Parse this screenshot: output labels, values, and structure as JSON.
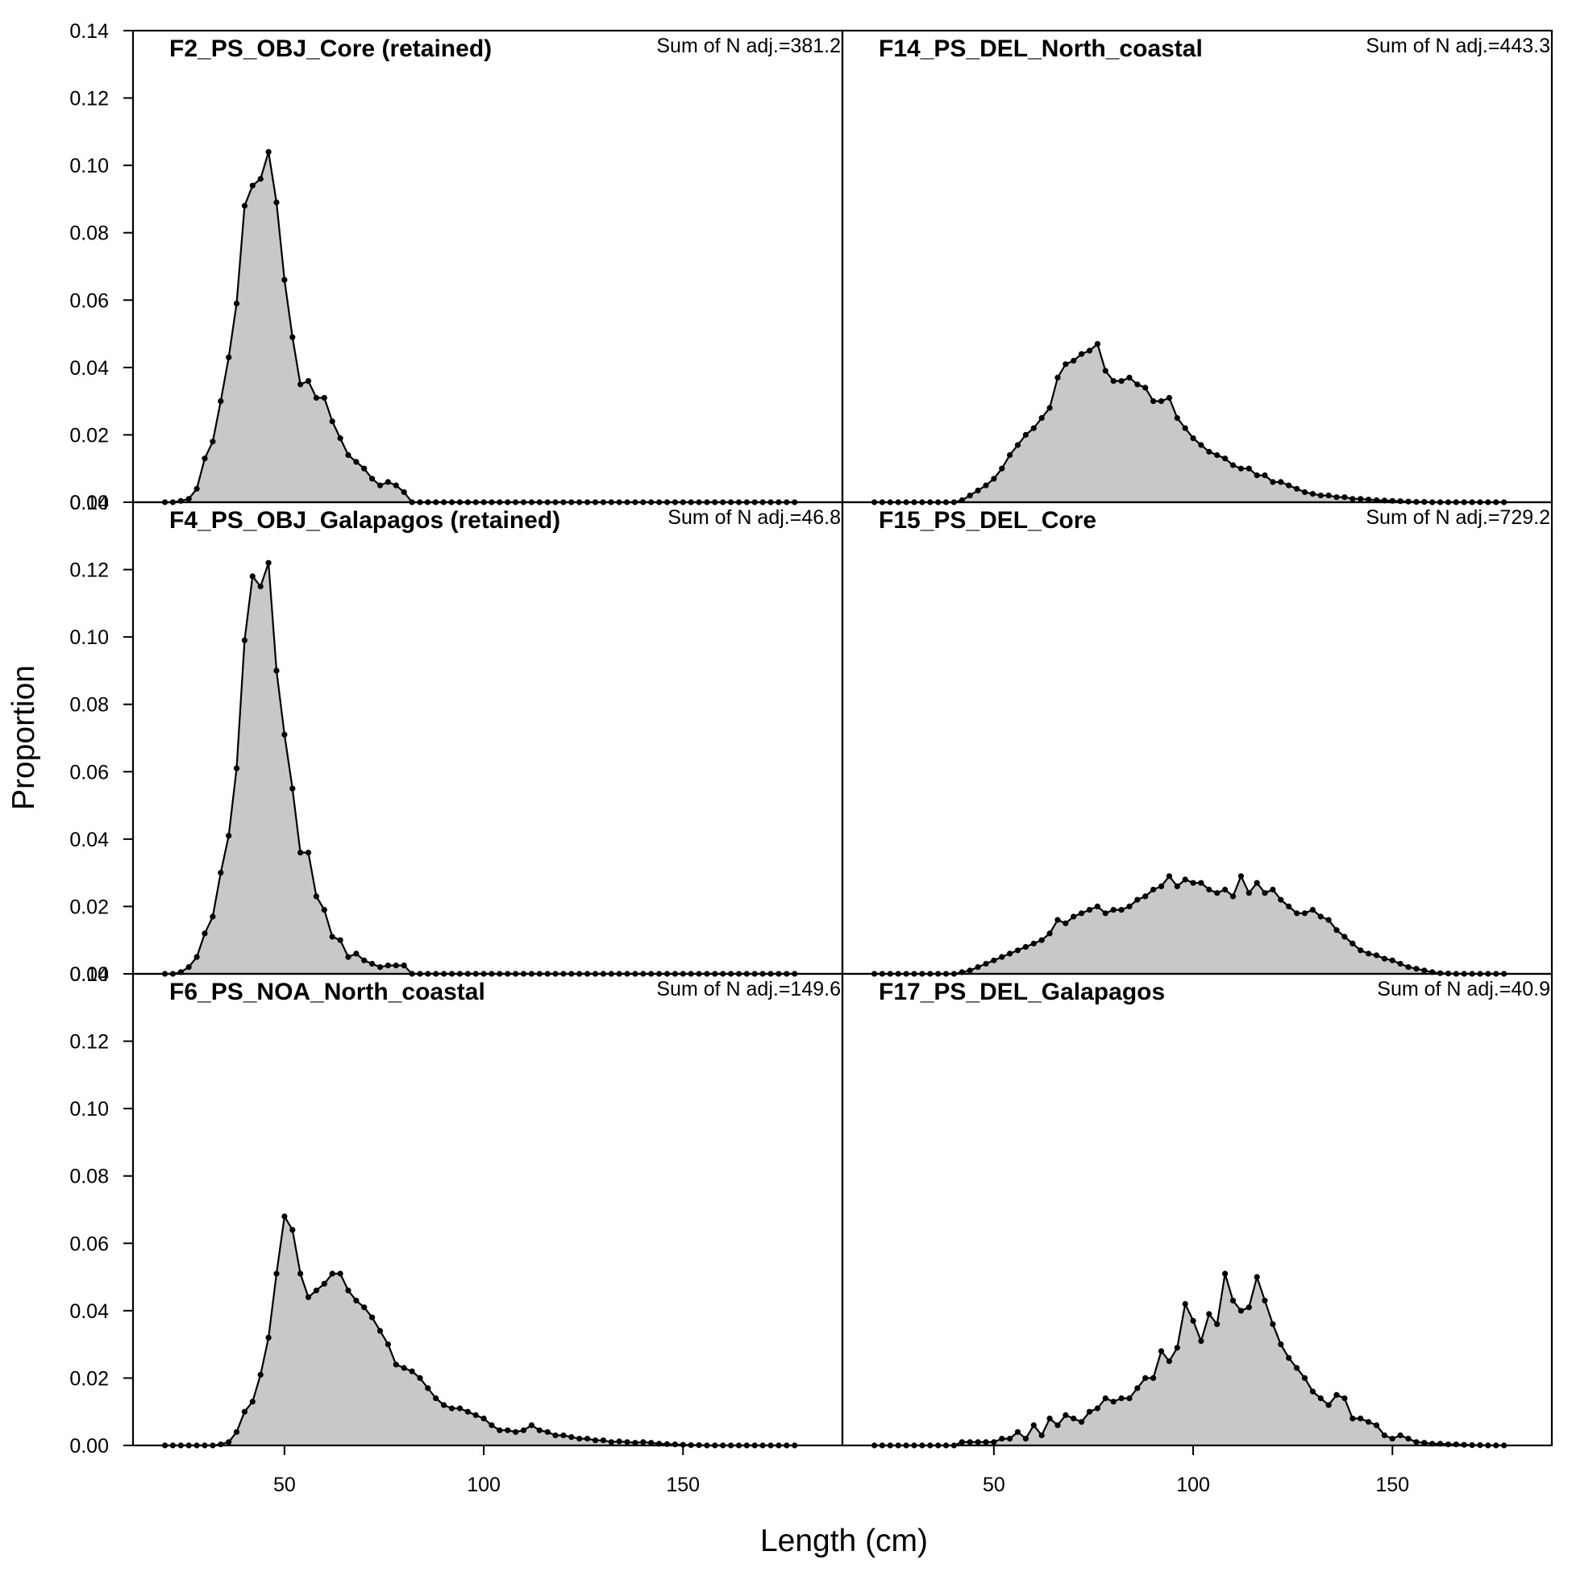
{
  "chart_data": {
    "type": "area",
    "layout": "3x2 panels, shared axes",
    "xlabel": "Length (cm)",
    "ylabel": "Proportion",
    "xlim": [
      12,
      190
    ],
    "ylim": [
      0,
      0.14
    ],
    "x_ticks": [
      50,
      100,
      150
    ],
    "x_tick_labels": [
      "50",
      "100",
      "150"
    ],
    "y_ticks": [
      0,
      0.02,
      0.04,
      0.06,
      0.08,
      0.1,
      0.12,
      0.14
    ],
    "y_tick_labels": [
      "0.00",
      "0.02",
      "0.04",
      "0.06",
      "0.08",
      "0.10",
      "0.12",
      "0.14"
    ],
    "grid": false,
    "legend": "none",
    "x": [
      20,
      22,
      24,
      26,
      28,
      30,
      32,
      34,
      36,
      38,
      40,
      42,
      44,
      46,
      48,
      50,
      52,
      54,
      56,
      58,
      60,
      62,
      64,
      66,
      68,
      70,
      72,
      74,
      76,
      78,
      80,
      82,
      84,
      86,
      88,
      90,
      92,
      94,
      96,
      98,
      100,
      102,
      104,
      106,
      108,
      110,
      112,
      114,
      116,
      118,
      120,
      122,
      124,
      126,
      128,
      130,
      132,
      134,
      136,
      138,
      140,
      142,
      144,
      146,
      148,
      150,
      152,
      154,
      156,
      158,
      160,
      162,
      164,
      166,
      168,
      170,
      172,
      174,
      176,
      178
    ],
    "panels": [
      {
        "title": "F2_PS_OBJ_Core (retained)",
        "n_label": "Sum of N adj.=381.2",
        "values": [
          0,
          0,
          0.0004,
          0.001,
          0.004,
          0.013,
          0.018,
          0.03,
          0.043,
          0.059,
          0.088,
          0.094,
          0.096,
          0.104,
          0.089,
          0.066,
          0.049,
          0.035,
          0.036,
          0.031,
          0.031,
          0.024,
          0.019,
          0.014,
          0.012,
          0.01,
          0.007,
          0.005,
          0.006,
          0.005,
          0.003,
          0,
          0,
          0,
          0,
          0,
          0,
          0,
          0,
          0,
          0,
          0,
          0,
          0,
          0,
          0,
          0,
          0,
          0,
          0,
          0,
          0,
          0,
          0,
          0,
          0,
          0,
          0,
          0,
          0,
          0,
          0,
          0,
          0,
          0,
          0,
          0,
          0,
          0,
          0,
          0,
          0,
          0,
          0,
          0,
          0,
          0,
          0,
          0,
          0
        ]
      },
      {
        "title": "F14_PS_DEL_North_coastal",
        "n_label": "Sum of N adj.=443.3",
        "values": [
          0,
          0,
          0,
          0,
          0,
          0,
          0,
          0,
          0,
          0,
          0,
          0.0006,
          0.002,
          0.0035,
          0.005,
          0.007,
          0.01,
          0.014,
          0.017,
          0.02,
          0.022,
          0.025,
          0.028,
          0.037,
          0.041,
          0.042,
          0.044,
          0.045,
          0.047,
          0.039,
          0.036,
          0.036,
          0.037,
          0.035,
          0.034,
          0.03,
          0.03,
          0.031,
          0.025,
          0.022,
          0.019,
          0.017,
          0.015,
          0.014,
          0.013,
          0.011,
          0.01,
          0.01,
          0.008,
          0.008,
          0.006,
          0.006,
          0.005,
          0.004,
          0.003,
          0.0025,
          0.002,
          0.002,
          0.0015,
          0.0015,
          0.001,
          0.001,
          0.0008,
          0.0006,
          0.0005,
          0.0004,
          0.0003,
          0.0002,
          0.0001,
          0.0001,
          0,
          0,
          0,
          0,
          0,
          0,
          0,
          0,
          0,
          0
        ]
      },
      {
        "title": "F4_PS_OBJ_Galapagos (retained)",
        "n_label": "Sum of N adj.=46.8",
        "values": [
          0,
          0,
          0.0005,
          0.002,
          0.005,
          0.012,
          0.017,
          0.03,
          0.041,
          0.061,
          0.099,
          0.118,
          0.115,
          0.122,
          0.09,
          0.071,
          0.055,
          0.036,
          0.036,
          0.023,
          0.019,
          0.011,
          0.01,
          0.005,
          0.006,
          0.004,
          0.003,
          0.002,
          0.0025,
          0.0025,
          0.0025,
          0,
          0,
          0,
          0,
          0,
          0,
          0,
          0,
          0,
          0,
          0,
          0,
          0,
          0,
          0,
          0,
          0,
          0,
          0,
          0,
          0,
          0,
          0,
          0,
          0,
          0,
          0,
          0,
          0,
          0,
          0,
          0,
          0,
          0,
          0,
          0,
          0,
          0,
          0,
          0,
          0,
          0,
          0,
          0,
          0,
          0,
          0,
          0,
          0
        ]
      },
      {
        "title": "F15_PS_DEL_Core",
        "n_label": "Sum of N adj.=729.2",
        "values": [
          0,
          0,
          0,
          0,
          0,
          0,
          0,
          0,
          0,
          0,
          0,
          0.0005,
          0.001,
          0.002,
          0.003,
          0.004,
          0.005,
          0.006,
          0.007,
          0.008,
          0.009,
          0.01,
          0.012,
          0.016,
          0.015,
          0.017,
          0.018,
          0.019,
          0.02,
          0.018,
          0.019,
          0.019,
          0.02,
          0.022,
          0.023,
          0.025,
          0.026,
          0.029,
          0.026,
          0.028,
          0.027,
          0.027,
          0.025,
          0.024,
          0.025,
          0.023,
          0.029,
          0.024,
          0.027,
          0.024,
          0.025,
          0.022,
          0.02,
          0.018,
          0.018,
          0.019,
          0.017,
          0.016,
          0.013,
          0.011,
          0.009,
          0.007,
          0.006,
          0.0055,
          0.0045,
          0.004,
          0.003,
          0.002,
          0.0015,
          0.001,
          0.0005,
          0.0002,
          0.0001,
          0,
          0,
          0,
          0,
          0,
          0,
          0
        ]
      },
      {
        "title": "F6_PS_NOA_North_coastal",
        "n_label": "Sum of N adj.=149.6",
        "values": [
          0,
          0,
          0,
          0,
          0,
          0,
          0,
          0.0003,
          0.001,
          0.004,
          0.01,
          0.013,
          0.021,
          0.032,
          0.051,
          0.068,
          0.064,
          0.051,
          0.044,
          0.046,
          0.048,
          0.051,
          0.051,
          0.046,
          0.043,
          0.041,
          0.038,
          0.034,
          0.03,
          0.024,
          0.023,
          0.022,
          0.02,
          0.017,
          0.014,
          0.012,
          0.011,
          0.011,
          0.01,
          0.009,
          0.008,
          0.006,
          0.0045,
          0.0045,
          0.004,
          0.0045,
          0.006,
          0.0045,
          0.004,
          0.003,
          0.003,
          0.0025,
          0.002,
          0.002,
          0.0015,
          0.0015,
          0.001,
          0.0012,
          0.001,
          0.0008,
          0.001,
          0.0008,
          0.0005,
          0.0004,
          0.0003,
          0.0002,
          0.0001,
          0.0001,
          0,
          0,
          0,
          0,
          0,
          0,
          0,
          0,
          0,
          0,
          0,
          0
        ]
      },
      {
        "title": "F17_PS_DEL_Galapagos",
        "n_label": "Sum of N adj.=40.9",
        "values": [
          0,
          0,
          0,
          0,
          0,
          0,
          0,
          0,
          0,
          0,
          0,
          0.001,
          0.001,
          0.001,
          0.001,
          0.001,
          0.002,
          0.002,
          0.004,
          0.002,
          0.006,
          0.003,
          0.008,
          0.006,
          0.009,
          0.008,
          0.007,
          0.01,
          0.011,
          0.014,
          0.013,
          0.014,
          0.014,
          0.017,
          0.02,
          0.02,
          0.028,
          0.025,
          0.029,
          0.042,
          0.037,
          0.031,
          0.039,
          0.036,
          0.051,
          0.043,
          0.04,
          0.041,
          0.05,
          0.043,
          0.036,
          0.03,
          0.026,
          0.023,
          0.02,
          0.016,
          0.014,
          0.012,
          0.015,
          0.014,
          0.008,
          0.008,
          0.007,
          0.006,
          0.003,
          0.002,
          0.003,
          0.002,
          0.001,
          0.0008,
          0.0005,
          0.0005,
          0.0003,
          0.0003,
          0.0002,
          0.0001,
          0.0001,
          0,
          0,
          0
        ]
      }
    ]
  }
}
